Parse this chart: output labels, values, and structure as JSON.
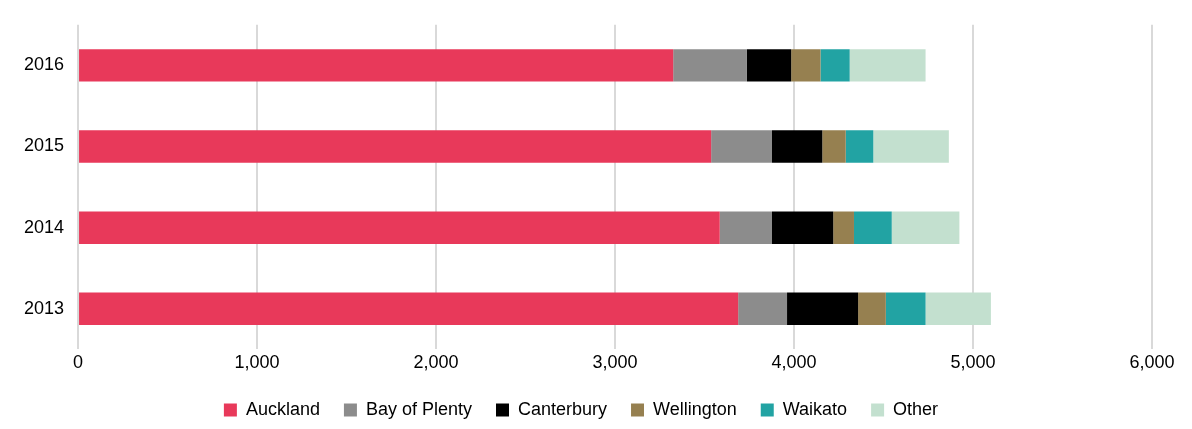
{
  "chart_data": {
    "type": "bar",
    "orientation": "horizontal",
    "stacked": true,
    "categories": [
      "2016",
      "2015",
      "2014",
      "2013"
    ],
    "series": [
      {
        "name": "Auckland",
        "color": "#e8395a",
        "values": [
          3325,
          3537,
          3585,
          3688
        ]
      },
      {
        "name": "Bay of Plenty",
        "color": "#8c8c8c",
        "values": [
          412,
          340,
          292,
          273
        ]
      },
      {
        "name": "Canterbury",
        "color": "#000000",
        "values": [
          247,
          281,
          342,
          397
        ]
      },
      {
        "name": "Wellington",
        "color": "#968050",
        "values": [
          164,
          131,
          116,
          155
        ]
      },
      {
        "name": "Waikato",
        "color": "#22a3a3",
        "values": [
          163,
          154,
          211,
          222
        ]
      },
      {
        "name": "Other",
        "color": "#c3e0cf",
        "values": [
          424,
          422,
          378,
          365
        ]
      }
    ],
    "xlim": [
      0,
      6000
    ],
    "xticks": [
      {
        "value": 0,
        "label": "0"
      },
      {
        "value": 1000,
        "label": "1,000"
      },
      {
        "value": 2000,
        "label": "2,000"
      },
      {
        "value": 3000,
        "label": "3,000"
      },
      {
        "value": 4000,
        "label": "4,000"
      },
      {
        "value": 5000,
        "label": "5,000"
      },
      {
        "value": 6000,
        "label": "6,000"
      }
    ],
    "grid": "x",
    "legend": "bottom"
  }
}
